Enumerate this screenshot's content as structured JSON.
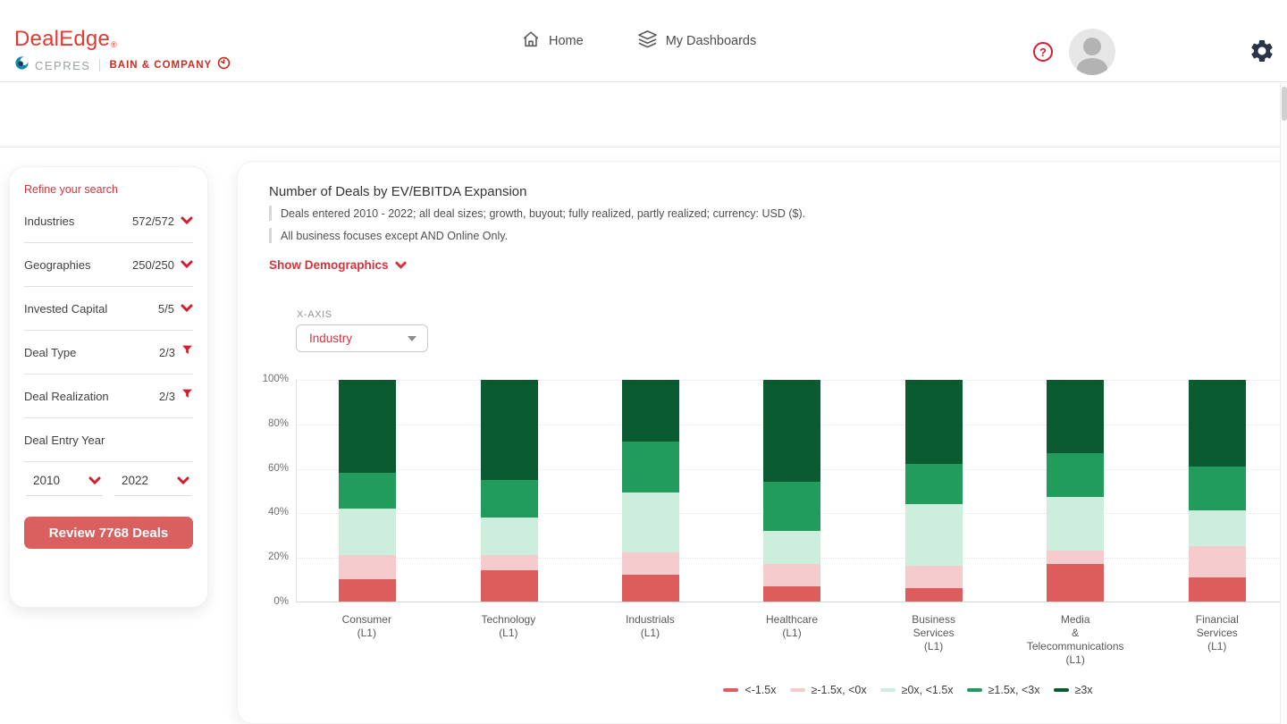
{
  "header": {
    "logo": {
      "name": "DealEdge",
      "reg": "®",
      "cepres": "CEPRES",
      "bain": "BAIN & COMPANY"
    },
    "nav_home": "Home",
    "nav_dashboards": "My Dashboards",
    "help_glyph": "?"
  },
  "sidebar": {
    "title": "Refine your search",
    "filters": [
      {
        "label": "Industries",
        "value": "572/572",
        "icon": "chevron"
      },
      {
        "label": "Geographies",
        "value": "250/250",
        "icon": "chevron"
      },
      {
        "label": "Invested Capital",
        "value": "5/5",
        "icon": "chevron"
      },
      {
        "label": "Deal Type",
        "value": "2/3",
        "icon": "funnel"
      },
      {
        "label": "Deal Realization",
        "value": "2/3",
        "icon": "funnel"
      },
      {
        "label": "Deal Entry Year",
        "value": "",
        "icon": ""
      }
    ],
    "year_from": "2010",
    "year_to": "2022",
    "review_button": "Review 7768 Deals"
  },
  "main": {
    "title": "Number of Deals by EV/EBITDA Expansion",
    "subtitles": [
      "Deals entered 2010 - 2022; all deal sizes; growth, buyout; fully realized, partly realized; currency: USD ($).",
      "All business focuses except AND Online Only."
    ],
    "show_demographics": "Show Demographics",
    "xaxis_label": "X-AXIS",
    "xaxis_value": "Industry"
  },
  "colors": {
    "accent_red": "#d6333b",
    "icon_red": "#d11f2f",
    "button_red": "#d9605e",
    "logo_red": "#e23a31",
    "bain_red": "#cb2c21",
    "cepres_teal": "#1487ac",
    "gear_navy": "#273449"
  },
  "chart_data": {
    "type": "bar",
    "stacked": true,
    "title": "Number of Deals by EV/EBITDA Expansion",
    "xlabel": "Industry",
    "ylabel": "",
    "ylim": [
      0,
      100
    ],
    "yticks": [
      "0%",
      "20%",
      "40%",
      "60%",
      "80%",
      "100%"
    ],
    "grid": "dotted-horizontal",
    "legend_position": "bottom",
    "categories": [
      "Consumer\n(L1)",
      "Technology\n(L1)",
      "Industrials\n(L1)",
      "Healthcare\n(L1)",
      "Business\nServices\n(L1)",
      "Media\n&\nTelecommunications\n(L1)",
      "Financial\nServices\n(L1)"
    ],
    "series": [
      {
        "name": "<-1.5x",
        "color": "#dd5c5c",
        "values": [
          10,
          14,
          12,
          7,
          6,
          17,
          11
        ]
      },
      {
        "name": "≥-1.5x, <0x",
        "color": "#f5cbcd",
        "values": [
          11,
          7,
          10,
          10,
          10,
          6,
          14
        ]
      },
      {
        "name": "≥0x, <1.5x",
        "color": "#cdeedd",
        "values": [
          21,
          17,
          27,
          15,
          28,
          24,
          16
        ]
      },
      {
        "name": "≥1.5x, <3x",
        "color": "#219c5c",
        "values": [
          16,
          17,
          23,
          22,
          18,
          20,
          20
        ]
      },
      {
        "name": "≥3x",
        "color": "#0a5c30",
        "values": [
          42,
          45,
          28,
          46,
          38,
          33,
          39
        ]
      }
    ],
    "values_unit": "percent of deals"
  }
}
